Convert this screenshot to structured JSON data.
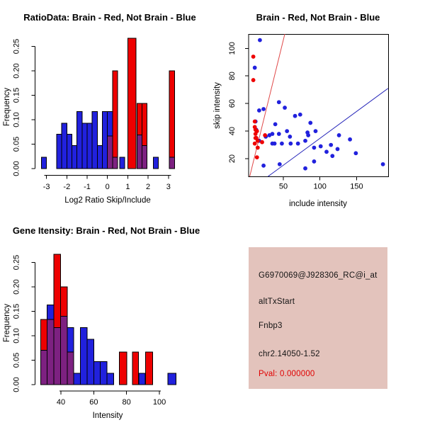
{
  "colors": {
    "red": "#ee0000",
    "blue": "#2121dd",
    "purple": "#7d2181",
    "red_line": "#e04848",
    "blue_line": "#2222b8",
    "axis": "#000000",
    "text": "#141414",
    "box_bg": "#e3c3bc",
    "pval_red": "#e00000"
  },
  "chart_data": [
    {
      "type": "bar",
      "subtype": "overlaid-histogram",
      "title": "RatioData: Brain - Red, Not Brain - Blue",
      "xlabel": "Log2 Ratio Skip/Include",
      "ylabel": "Frequency",
      "xlim": [
        -3.5,
        3.4
      ],
      "ylim": [
        0,
        0.27
      ],
      "xticks": [
        -3,
        -2,
        -1,
        0,
        1,
        2,
        3
      ],
      "xtick_labels": [
        "-3",
        "-2",
        "-1",
        "0",
        "1",
        "2",
        "3"
      ],
      "yticks": [
        0,
        0.05,
        0.1,
        0.15,
        0.2,
        0.25
      ],
      "ytick_labels": [
        "0.00",
        "0.05",
        "0.10",
        "0.15",
        "0.20",
        "0.25"
      ],
      "legend_note": "blue = Not Brain frequency, red = Brain frequency, purple = overlap",
      "bars": [
        [
          -3.25,
          0.25,
          0.023,
          0
        ],
        [
          -2.5,
          0.25,
          0.07,
          0
        ],
        [
          -2.25,
          0.25,
          0.093,
          0
        ],
        [
          -2.0,
          0.25,
          0.07,
          0
        ],
        [
          -1.75,
          0.25,
          0.047,
          0
        ],
        [
          -1.5,
          0.25,
          0.117,
          0
        ],
        [
          -1.25,
          0.25,
          0.093,
          0
        ],
        [
          -1.0,
          0.25,
          0.093,
          0
        ],
        [
          -0.75,
          0.25,
          0.117,
          0
        ],
        [
          -0.5,
          0.25,
          0.047,
          0
        ],
        [
          -0.25,
          0.25,
          0.117,
          0
        ],
        [
          0.0,
          0.25,
          0.117,
          0.067
        ],
        [
          0.25,
          0.25,
          0.023,
          0.2
        ],
        [
          0.6,
          0.25,
          0.023,
          0
        ],
        [
          1.0,
          0.4,
          0,
          0.267
        ],
        [
          1.45,
          0.25,
          0.069,
          0.133
        ],
        [
          1.7,
          0.25,
          0.047,
          0.133
        ],
        [
          2.25,
          0.25,
          0.023,
          0
        ],
        [
          3.05,
          0.25,
          0.023,
          0.2
        ]
      ]
    },
    {
      "type": "scatter",
      "title": "Brain - Red, Not Brain - Blue",
      "xlabel": "include intensity",
      "ylabel": "skip intensity",
      "xlim": [
        2,
        193
      ],
      "ylim": [
        7,
        110.5
      ],
      "xticks": [
        50,
        100,
        150
      ],
      "xtick_labels": [
        "50",
        "100",
        "150"
      ],
      "yticks": [
        20,
        40,
        60,
        80,
        100
      ],
      "ytick_labels": [
        "20",
        "40",
        "60",
        "80",
        "100"
      ],
      "red_points": [
        [
          9,
          94
        ],
        [
          9,
          77
        ],
        [
          11,
          47
        ],
        [
          11,
          43
        ],
        [
          12,
          41
        ],
        [
          14,
          40
        ],
        [
          12,
          38
        ],
        [
          12,
          35
        ],
        [
          13,
          35
        ],
        [
          15,
          33
        ],
        [
          11,
          31
        ],
        [
          15,
          28
        ],
        [
          14,
          21
        ],
        [
          25,
          37
        ],
        [
          21,
          32
        ]
      ],
      "blue_points": [
        [
          18,
          106
        ],
        [
          11,
          86
        ],
        [
          17,
          55
        ],
        [
          23,
          56
        ],
        [
          44,
          61
        ],
        [
          52,
          57
        ],
        [
          66,
          51
        ],
        [
          73,
          52
        ],
        [
          87,
          46
        ],
        [
          39,
          45
        ],
        [
          12,
          47
        ],
        [
          13,
          41
        ],
        [
          44,
          38
        ],
        [
          55,
          40
        ],
        [
          59,
          36
        ],
        [
          83,
          39
        ],
        [
          84,
          37
        ],
        [
          94,
          40
        ],
        [
          101,
          29
        ],
        [
          109,
          25
        ],
        [
          117,
          22
        ],
        [
          31,
          37
        ],
        [
          26,
          36
        ],
        [
          92,
          28
        ],
        [
          45,
          16
        ],
        [
          80,
          13
        ],
        [
          92,
          18
        ],
        [
          23,
          15
        ],
        [
          126,
          37
        ],
        [
          141,
          34
        ],
        [
          149,
          24
        ],
        [
          124,
          27
        ],
        [
          115,
          30
        ],
        [
          186,
          16
        ],
        [
          17,
          33
        ],
        [
          35,
          31
        ],
        [
          38,
          31
        ],
        [
          70,
          31
        ],
        [
          80,
          33
        ],
        [
          35,
          38
        ],
        [
          48,
          31
        ],
        [
          60,
          31
        ],
        [
          13,
          35
        ]
      ],
      "red_line": {
        "x1": 4.1,
        "y1": 7.1,
        "x2": 52,
        "y2": 110.4
      },
      "blue_line": {
        "x1": 29,
        "y1": 7.1,
        "x2": 193,
        "y2": 71
      }
    },
    {
      "type": "bar",
      "subtype": "overlaid-histogram",
      "title": "Gene Itensity: Brain - Red, Not Brain - Blue",
      "xlabel": "Intensity",
      "ylabel": "Frequency",
      "xlim": [
        25,
        112
      ],
      "ylim": [
        0,
        0.27
      ],
      "xticks": [
        40,
        60,
        80,
        100
      ],
      "xtick_labels": [
        "40",
        "60",
        "80",
        "100"
      ],
      "yticks": [
        0,
        0.05,
        0.1,
        0.15,
        0.2,
        0.25
      ],
      "ytick_labels": [
        "0.00",
        "0.05",
        "0.10",
        "0.15",
        "0.20",
        "0.25"
      ],
      "legend_note": "blue = Not Brain frequency, red = Brain frequency, purple = overlap",
      "bars": [
        [
          27.6,
          4.05,
          0.07,
          0.133
        ],
        [
          31.65,
          4.05,
          0.163,
          0.133
        ],
        [
          35.7,
          4.05,
          0.117,
          0.267
        ],
        [
          39.75,
          4.05,
          0.14,
          0.2
        ],
        [
          43.8,
          4.05,
          0.117,
          0.067
        ],
        [
          47.85,
          4.05,
          0.023,
          0
        ],
        [
          51.9,
          4.05,
          0.117,
          0
        ],
        [
          55.95,
          4.05,
          0.093,
          0
        ],
        [
          60.0,
          4.05,
          0.047,
          0
        ],
        [
          64.05,
          4.05,
          0.047,
          0
        ],
        [
          68.1,
          4.05,
          0.023,
          0
        ],
        [
          75.6,
          4.5,
          0,
          0.067
        ],
        [
          83.5,
          3.8,
          0,
          0.067
        ],
        [
          87.5,
          3.8,
          0.023,
          0
        ],
        [
          91.5,
          4.4,
          0,
          0.067
        ],
        [
          105.1,
          5.0,
          0.023,
          0
        ]
      ]
    }
  ],
  "info_panel": {
    "probe_id": "G6970069@J928306_RC@i_at",
    "event_type": "altTxStart",
    "gene": "Fnbp3",
    "locus": "chr2.14050-1.52",
    "pval_label": "Pval: 0.000000"
  }
}
